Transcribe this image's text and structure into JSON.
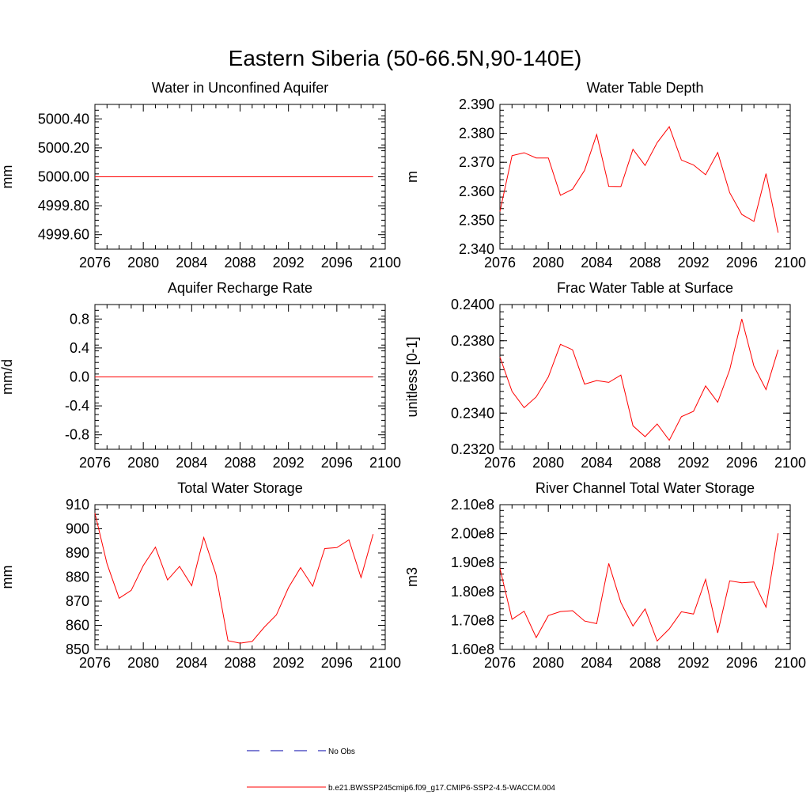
{
  "title": "Eastern Siberia (50-66.5N,90-140E)",
  "colors": {
    "model": "#ff0000",
    "obs": "#0000aa",
    "axis": "#000000"
  },
  "legend": {
    "obs_label": "No Obs",
    "model_label": "b.e21.BWSSP245cmip6.f09_g17.CMIP6-SSP2-4.5-WACCM.004"
  },
  "chart_data": [
    {
      "type": "line",
      "title": "Water in Unconfined Aquifer",
      "xlabel": "",
      "ylabel": "mm",
      "xlim": [
        2076,
        2100
      ],
      "ylim": [
        4999.5,
        5000.5
      ],
      "xticks": [
        "2076",
        "2080",
        "2084",
        "2088",
        "2092",
        "2096",
        "2100"
      ],
      "yticks": [
        {
          "value": 4999.6,
          "label": "4999.60"
        },
        {
          "value": 4999.8,
          "label": "4999.80"
        },
        {
          "value": 5000.0,
          "label": "5000.00"
        },
        {
          "value": 5000.2,
          "label": "5000.20"
        },
        {
          "value": 5000.4,
          "label": "5000.40"
        }
      ],
      "series": [
        {
          "name": "b.e21.BWSSP245cmip6.f09_g17.CMIP6-SSP2-4.5-WACCM.004",
          "x": [
            2076,
            2077,
            2078,
            2079,
            2080,
            2081,
            2082,
            2083,
            2084,
            2085,
            2086,
            2087,
            2088,
            2089,
            2090,
            2091,
            2092,
            2093,
            2094,
            2095,
            2096,
            2097,
            2098,
            2099
          ],
          "values": [
            5000,
            5000,
            5000,
            5000,
            5000,
            5000,
            5000,
            5000,
            5000,
            5000,
            5000,
            5000,
            5000,
            5000,
            5000,
            5000,
            5000,
            5000,
            5000,
            5000,
            5000,
            5000,
            5000,
            5000
          ]
        }
      ]
    },
    {
      "type": "line",
      "title": "Water Table Depth",
      "xlabel": "",
      "ylabel": "m",
      "xlim": [
        2076,
        2100
      ],
      "ylim": [
        2.34,
        2.39
      ],
      "xticks": [
        "2076",
        "2080",
        "2084",
        "2088",
        "2092",
        "2096",
        "2100"
      ],
      "yticks": [
        {
          "value": 2.34,
          "label": "2.340"
        },
        {
          "value": 2.35,
          "label": "2.350"
        },
        {
          "value": 2.36,
          "label": "2.360"
        },
        {
          "value": 2.37,
          "label": "2.370"
        },
        {
          "value": 2.38,
          "label": "2.380"
        },
        {
          "value": 2.39,
          "label": "2.390"
        }
      ],
      "series": [
        {
          "name": "b.e21.BWSSP245cmip6.f09_g17.CMIP6-SSP2-4.5-WACCM.004",
          "x": [
            2076,
            2077,
            2078,
            2079,
            2080,
            2081,
            2082,
            2083,
            2084,
            2085,
            2086,
            2087,
            2088,
            2089,
            2090,
            2091,
            2092,
            2093,
            2094,
            2095,
            2096,
            2097,
            2098,
            2099
          ],
          "values": [
            2.353,
            2.3723,
            2.3733,
            2.3715,
            2.3715,
            2.3586,
            2.3607,
            2.3672,
            2.3796,
            2.3617,
            2.3616,
            2.3745,
            2.3689,
            2.3768,
            2.3823,
            2.3708,
            2.3691,
            2.3657,
            2.3734,
            2.3595,
            2.352,
            2.3496,
            2.3661,
            2.3457
          ]
        }
      ]
    },
    {
      "type": "line",
      "title": "Aquifer Recharge Rate",
      "xlabel": "",
      "ylabel": "mm/d",
      "xlim": [
        2076,
        2100
      ],
      "ylim": [
        -1.0,
        1.0
      ],
      "xticks": [
        "2076",
        "2080",
        "2084",
        "2088",
        "2092",
        "2096",
        "2100"
      ],
      "yticks": [
        {
          "value": -0.8,
          "label": "-0.8"
        },
        {
          "value": -0.4,
          "label": "-0.4"
        },
        {
          "value": 0.0,
          "label": "0.0"
        },
        {
          "value": 0.4,
          "label": "0.4"
        },
        {
          "value": 0.8,
          "label": "0.8"
        }
      ],
      "series": [
        {
          "name": "b.e21.BWSSP245cmip6.f09_g17.CMIP6-SSP2-4.5-WACCM.004",
          "x": [
            2076,
            2077,
            2078,
            2079,
            2080,
            2081,
            2082,
            2083,
            2084,
            2085,
            2086,
            2087,
            2088,
            2089,
            2090,
            2091,
            2092,
            2093,
            2094,
            2095,
            2096,
            2097,
            2098,
            2099
          ],
          "values": [
            0,
            0,
            0,
            0,
            0,
            0,
            0,
            0,
            0,
            0,
            0,
            0,
            0,
            0,
            0,
            0,
            0,
            0,
            0,
            0,
            0,
            0,
            0,
            0
          ]
        }
      ]
    },
    {
      "type": "line",
      "title": "Frac Water Table at Surface",
      "xlabel": "",
      "ylabel": "unitless [0-1]",
      "xlim": [
        2076,
        2100
      ],
      "ylim": [
        0.232,
        0.24
      ],
      "xticks": [
        "2076",
        "2080",
        "2084",
        "2088",
        "2092",
        "2096",
        "2100"
      ],
      "yticks": [
        {
          "value": 0.232,
          "label": "0.2320"
        },
        {
          "value": 0.234,
          "label": "0.2340"
        },
        {
          "value": 0.236,
          "label": "0.2360"
        },
        {
          "value": 0.238,
          "label": "0.2380"
        },
        {
          "value": 0.24,
          "label": "0.2400"
        }
      ],
      "series": [
        {
          "name": "b.e21.BWSSP245cmip6.f09_g17.CMIP6-SSP2-4.5-WACCM.004",
          "x": [
            2076,
            2077,
            2078,
            2079,
            2080,
            2081,
            2082,
            2083,
            2084,
            2085,
            2086,
            2087,
            2088,
            2089,
            2090,
            2091,
            2092,
            2093,
            2094,
            2095,
            2096,
            2097,
            2098,
            2099
          ],
          "values": [
            0.2371,
            0.2352,
            0.2343,
            0.2349,
            0.236,
            0.2378,
            0.2375,
            0.2356,
            0.2358,
            0.2357,
            0.2361,
            0.2333,
            0.2327,
            0.2334,
            0.2325,
            0.2338,
            0.2341,
            0.2355,
            0.2346,
            0.2364,
            0.2392,
            0.2366,
            0.2353,
            0.2375
          ]
        }
      ]
    },
    {
      "type": "line",
      "title": "Total Water Storage",
      "xlabel": "",
      "ylabel": "mm",
      "xlim": [
        2076,
        2100
      ],
      "ylim": [
        850,
        910
      ],
      "xticks": [
        "2076",
        "2080",
        "2084",
        "2088",
        "2092",
        "2096",
        "2100"
      ],
      "yticks": [
        {
          "value": 850,
          "label": "850"
        },
        {
          "value": 860,
          "label": "860"
        },
        {
          "value": 870,
          "label": "870"
        },
        {
          "value": 880,
          "label": "880"
        },
        {
          "value": 890,
          "label": "890"
        },
        {
          "value": 900,
          "label": "900"
        },
        {
          "value": 910,
          "label": "910"
        }
      ],
      "series": [
        {
          "name": "b.e21.BWSSP245cmip6.f09_g17.CMIP6-SSP2-4.5-WACCM.004",
          "x": [
            2076,
            2077,
            2078,
            2079,
            2080,
            2081,
            2082,
            2083,
            2084,
            2085,
            2086,
            2087,
            2088,
            2089,
            2090,
            2091,
            2092,
            2093,
            2094,
            2095,
            2096,
            2097,
            2098,
            2099
          ],
          "values": [
            906.5,
            885.5,
            871.2,
            874.5,
            884.8,
            892.4,
            878.8,
            884.4,
            876.4,
            896.4,
            881.2,
            853.6,
            852.6,
            853.3,
            859.2,
            864.3,
            875.6,
            883.9,
            876.2,
            891.8,
            892.2,
            895.4,
            879.8,
            897.8
          ]
        }
      ]
    },
    {
      "type": "line",
      "title": "River Channel Total Water Storage",
      "xlabel": "",
      "ylabel": "m3",
      "xlim": [
        2076,
        2100
      ],
      "ylim": [
        160000000,
        210000000
      ],
      "xticks": [
        "2076",
        "2080",
        "2084",
        "2088",
        "2092",
        "2096",
        "2100"
      ],
      "yticks": [
        {
          "value": 160000000,
          "label": "1.60e8"
        },
        {
          "value": 170000000,
          "label": "1.70e8"
        },
        {
          "value": 180000000,
          "label": "1.80e8"
        },
        {
          "value": 190000000,
          "label": "1.90e8"
        },
        {
          "value": 200000000,
          "label": "2.00e8"
        },
        {
          "value": 210000000,
          "label": "2.10e8"
        }
      ],
      "series": [
        {
          "name": "b.e21.BWSSP245cmip6.f09_g17.CMIP6-SSP2-4.5-WACCM.004",
          "x": [
            2076,
            2077,
            2078,
            2079,
            2080,
            2081,
            2082,
            2083,
            2084,
            2085,
            2086,
            2087,
            2088,
            2089,
            2090,
            2091,
            2092,
            2093,
            2094,
            2095,
            2096,
            2097,
            2098,
            2099
          ],
          "values": [
            188000000,
            170400000,
            173200000,
            164100000,
            171700000,
            173100000,
            173400000,
            169800000,
            168900000,
            189700000,
            176200000,
            168100000,
            174000000,
            162900000,
            167100000,
            173000000,
            172200000,
            184200000,
            165700000,
            183700000,
            183000000,
            183300000,
            174600000,
            200100000
          ]
        }
      ]
    }
  ]
}
